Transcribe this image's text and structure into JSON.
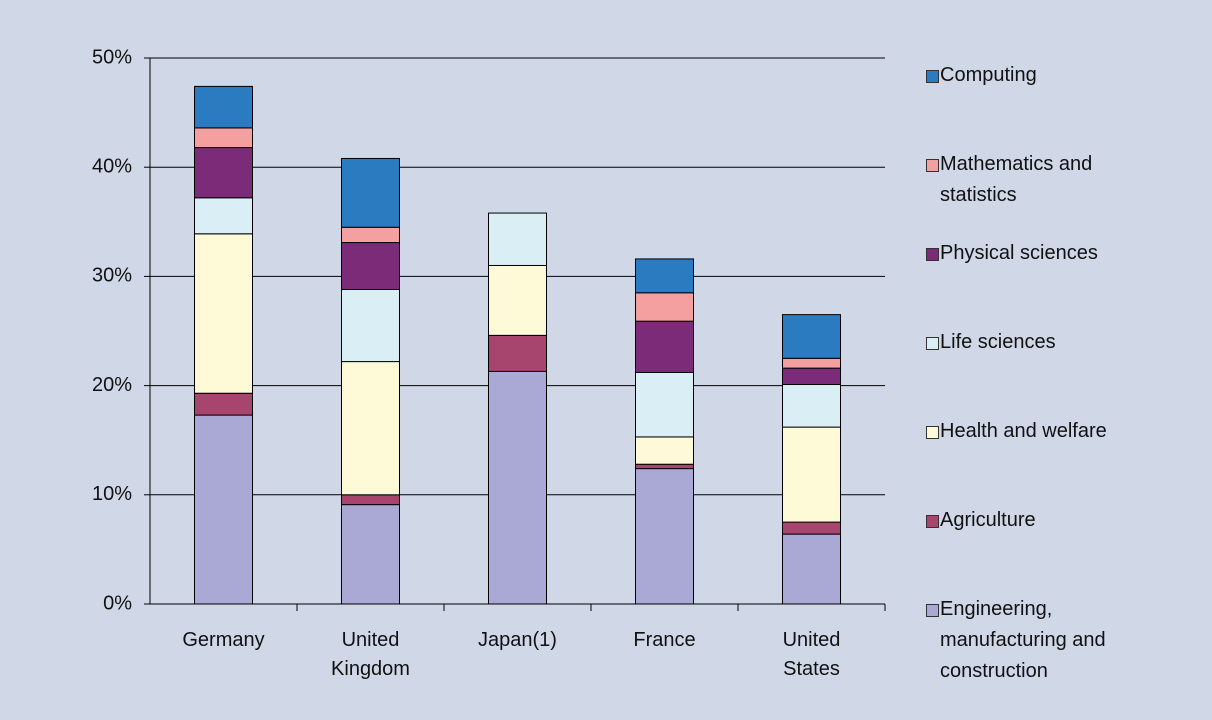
{
  "chart_data": {
    "type": "stacked_bar",
    "categories": [
      "Germany",
      "United Kingdom",
      "Japan(1)",
      "France",
      "United States"
    ],
    "series": [
      {
        "name": "Engineering, manufacturing and construction",
        "color": "#aaa9d6",
        "values": [
          17.3,
          9.1,
          21.3,
          12.4,
          6.4
        ]
      },
      {
        "name": "Agriculture",
        "color": "#a8456e",
        "values": [
          2.0,
          0.9,
          3.3,
          0.4,
          1.1
        ]
      },
      {
        "name": "Health and welfare",
        "color": "#fefad8",
        "values": [
          14.6,
          12.2,
          6.4,
          2.5,
          8.7
        ]
      },
      {
        "name": "Life sciences",
        "color": "#daeef5",
        "values": [
          3.3,
          6.6,
          4.8,
          5.9,
          3.9
        ]
      },
      {
        "name": "Physical sciences",
        "color": "#7b2b78",
        "values": [
          4.6,
          4.3,
          0,
          4.7,
          1.5
        ]
      },
      {
        "name": "Mathematics and statistics",
        "color": "#f4a0a0",
        "values": [
          1.8,
          1.4,
          0,
          2.6,
          0.9
        ]
      },
      {
        "name": "Computing",
        "color": "#2b7bc0",
        "values": [
          3.8,
          6.3,
          0,
          3.1,
          4.0
        ]
      }
    ],
    "ylim": [
      0,
      50
    ],
    "yticks": [
      {
        "value": 0,
        "label": "0%"
      },
      {
        "value": 10,
        "label": "10%"
      },
      {
        "value": 20,
        "label": "20%"
      },
      {
        "value": 30,
        "label": "30%"
      },
      {
        "value": 40,
        "label": "40%"
      },
      {
        "value": 50,
        "label": "50%"
      }
    ],
    "grid": true,
    "legend": "right"
  }
}
